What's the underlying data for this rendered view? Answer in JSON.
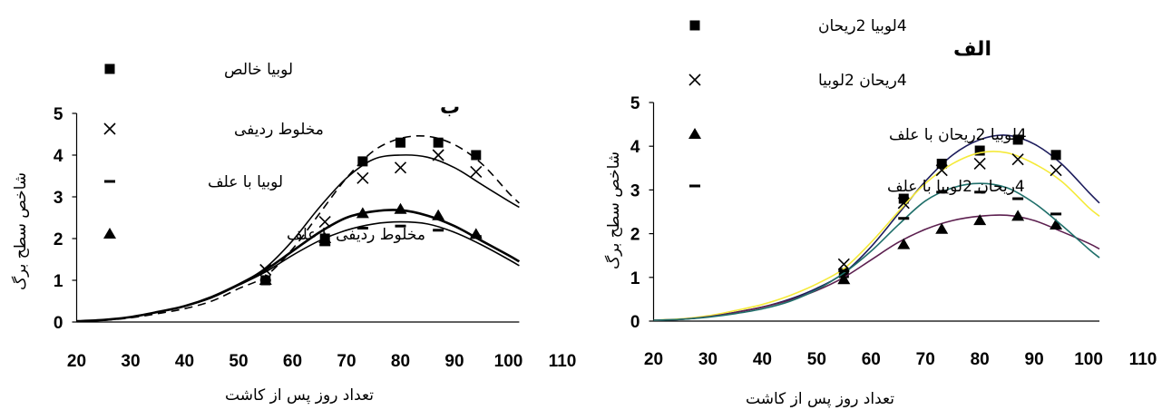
{
  "chart_data": [
    {
      "type": "line",
      "panel_label": "ب",
      "xlabel": "تعداد روز پس از کاشت",
      "ylabel": "شاخص سطح برگ",
      "xlim": [
        20,
        110
      ],
      "ylim": [
        0,
        5
      ],
      "xticks": [
        20,
        30,
        40,
        50,
        60,
        70,
        80,
        90,
        100,
        110
      ],
      "yticks": [
        0,
        1,
        2,
        3,
        4,
        5
      ],
      "grid": false,
      "legend_position": "left",
      "points_x": [
        55,
        66,
        73,
        80,
        87,
        94
      ],
      "curve_x": [
        20,
        25,
        30,
        35,
        40,
        45,
        50,
        55,
        60,
        65,
        70,
        75,
        80,
        85,
        90,
        95,
        100,
        102
      ],
      "series": [
        {
          "name": "لوبیا خالص",
          "marker": "square",
          "points": [
            1.0,
            2.0,
            3.85,
            4.3,
            4.3,
            4.0
          ],
          "curve": [
            0.02,
            0.04,
            0.1,
            0.2,
            0.32,
            0.5,
            0.8,
            1.1,
            1.75,
            2.6,
            3.45,
            4.1,
            4.4,
            4.45,
            4.25,
            3.8,
            3.1,
            2.85
          ],
          "line_style": "dashed",
          "color": "#000000"
        },
        {
          "name": "مخلوط ردیفی",
          "marker": "x",
          "points": [
            1.25,
            2.4,
            3.45,
            3.7,
            4.0,
            3.6
          ],
          "curve": [
            0.02,
            0.05,
            0.12,
            0.24,
            0.38,
            0.6,
            0.9,
            1.3,
            1.95,
            2.75,
            3.45,
            3.9,
            4.0,
            3.95,
            3.7,
            3.3,
            2.9,
            2.75
          ],
          "line_style": "solid",
          "color": "#000000"
        },
        {
          "name": "لوبیا با علف",
          "marker": "dash",
          "points": [
            1.0,
            1.85,
            2.25,
            2.3,
            2.2,
            2.05
          ],
          "curve": [
            0.02,
            0.05,
            0.12,
            0.24,
            0.38,
            0.58,
            0.88,
            1.2,
            1.6,
            1.95,
            2.2,
            2.35,
            2.4,
            2.35,
            2.15,
            1.85,
            1.5,
            1.35
          ],
          "line_style": "solid",
          "color": "#000000"
        },
        {
          "name": "مخلوط ردیفی با علف",
          "marker": "triangle",
          "points": [
            1.0,
            2.0,
            2.6,
            2.7,
            2.55,
            2.1
          ],
          "curve": [
            0.02,
            0.05,
            0.12,
            0.24,
            0.38,
            0.6,
            0.9,
            1.25,
            1.7,
            2.15,
            2.5,
            2.65,
            2.68,
            2.55,
            2.3,
            1.95,
            1.6,
            1.45
          ],
          "line_style": "solid-bold",
          "color": "#000000"
        }
      ]
    },
    {
      "type": "line",
      "panel_label": "الف",
      "xlabel": "تعداد روز پس از کاشت",
      "ylabel": "شاخص سطح برگ",
      "xlim": [
        20,
        110
      ],
      "ylim": [
        0,
        5
      ],
      "xticks": [
        20,
        30,
        40,
        50,
        60,
        70,
        80,
        90,
        100,
        110
      ],
      "yticks": [
        0,
        1,
        2,
        3,
        4,
        5
      ],
      "grid": false,
      "legend_position": "top-center",
      "points_x": [
        55,
        66,
        73,
        80,
        87,
        94
      ],
      "curve_x": [
        20,
        25,
        30,
        35,
        40,
        45,
        50,
        55,
        60,
        65,
        70,
        75,
        80,
        85,
        90,
        95,
        100,
        102
      ],
      "series": [
        {
          "name": "4لوبیا 2ریحان",
          "marker": "square",
          "points": [
            1.1,
            2.8,
            3.6,
            3.9,
            4.15,
            3.8
          ],
          "curve": [
            0.02,
            0.04,
            0.1,
            0.2,
            0.32,
            0.5,
            0.75,
            1.1,
            1.7,
            2.45,
            3.2,
            3.8,
            4.15,
            4.25,
            4.05,
            3.6,
            2.95,
            2.7
          ],
          "color": "#1c1c5c"
        },
        {
          "name": "4ریحان 2لوبیا",
          "marker": "x",
          "points": [
            1.3,
            2.7,
            3.45,
            3.6,
            3.7,
            3.45
          ],
          "curve": [
            0.02,
            0.05,
            0.12,
            0.24,
            0.38,
            0.58,
            0.85,
            1.2,
            1.8,
            2.5,
            3.15,
            3.6,
            3.85,
            3.85,
            3.6,
            3.2,
            2.6,
            2.4
          ],
          "color": "#f5ea3a"
        },
        {
          "name": "4لوبیا 2ریحان با علف",
          "marker": "triangle",
          "points": [
            0.95,
            1.75,
            2.1,
            2.3,
            2.4,
            2.2
          ],
          "curve": [
            0.02,
            0.04,
            0.1,
            0.2,
            0.32,
            0.48,
            0.7,
            1.0,
            1.4,
            1.8,
            2.1,
            2.3,
            2.4,
            2.42,
            2.3,
            2.05,
            1.78,
            1.65
          ],
          "color": "#5c1f4f"
        },
        {
          "name": "4ریحان 2لوبیا با علف",
          "marker": "dash",
          "points": [
            1.15,
            2.35,
            2.95,
            2.95,
            2.8,
            2.45
          ],
          "curve": [
            0.02,
            0.04,
            0.09,
            0.17,
            0.28,
            0.45,
            0.72,
            1.1,
            1.6,
            2.2,
            2.75,
            3.05,
            3.15,
            3.05,
            2.7,
            2.2,
            1.65,
            1.45
          ],
          "color": "#1f6f6a"
        }
      ]
    }
  ]
}
